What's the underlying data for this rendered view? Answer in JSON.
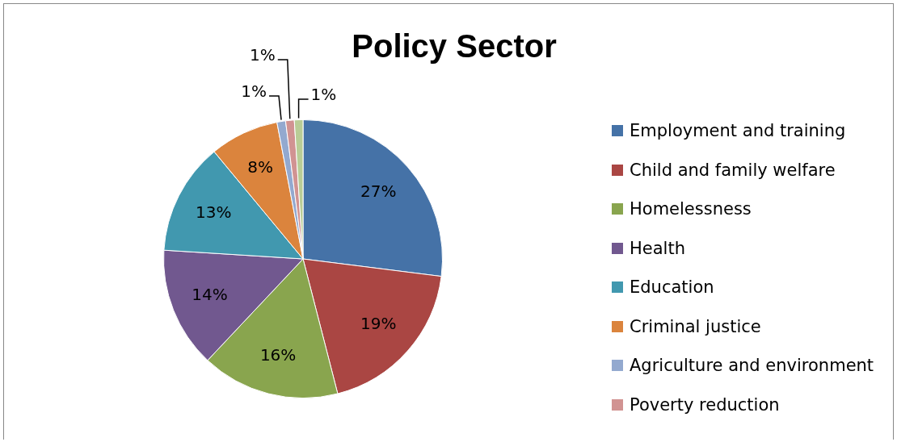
{
  "chart_data": {
    "type": "pie",
    "title": "Policy Sector",
    "categories": [
      "Employment and training",
      "Child and family welfare",
      "Homelessness",
      "Health",
      "Education",
      "Criminal justice",
      "Agriculture and environment",
      "Poverty reduction",
      null
    ],
    "values": [
      27,
      19,
      16,
      14,
      13,
      8,
      1,
      1,
      1
    ],
    "colors": [
      "#4572a7",
      "#aa4643",
      "#89a54e",
      "#71588f",
      "#4198af",
      "#db843d",
      "#93a9cf",
      "#d19392",
      "#b9cd96"
    ],
    "value_labels": [
      "27%",
      "19%",
      "16%",
      "14%",
      "13%",
      "8%",
      "1%",
      "1%",
      "1%"
    ],
    "legend": "right"
  }
}
